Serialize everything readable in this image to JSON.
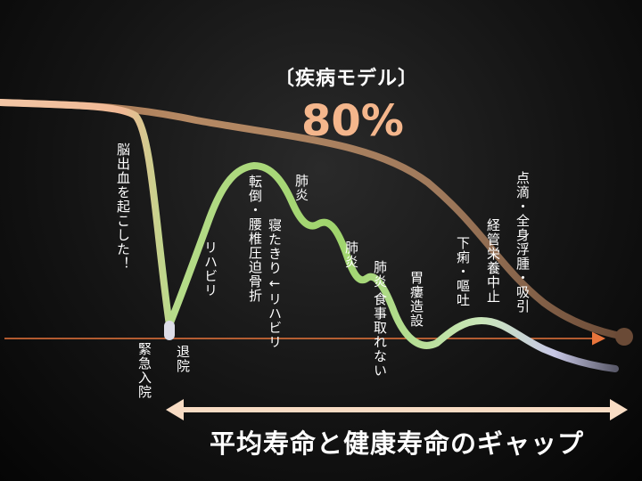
{
  "title": "〔疾病モデル〕",
  "percent": "80%",
  "labels": {
    "stroke": "脳出血を起こした！",
    "emergency": "緊急入院",
    "discharge": "退院",
    "rehab": "リハビリ",
    "fall_col1": "転倒・腰椎圧迫骨折",
    "fall_col2": "寝たきり←リハビリ",
    "pneumonia1": "肺炎",
    "pneumonia2": "肺炎",
    "pneumonia3": "肺炎",
    "no_eating": "食事取れない",
    "gastrostomy": "胃瘻造設",
    "diarrhea": "下痢・嘔吐",
    "tube_stop": "経管栄養中止",
    "iv_col1": "点滴・全身浮腫・吸引"
  },
  "gap_label": "平均寿命と健康寿命のギャップ",
  "colors": {
    "background": "#000000",
    "life_curve": "#b98d6a",
    "health_curve_start": "#f4b68c",
    "health_curve_mid": "#9ed46c",
    "health_curve_end": "#c8c8e6",
    "axis_line": "#e8743b",
    "gap_arrow": "#f8dcc4",
    "accent_percent": "#f4b68c"
  }
}
